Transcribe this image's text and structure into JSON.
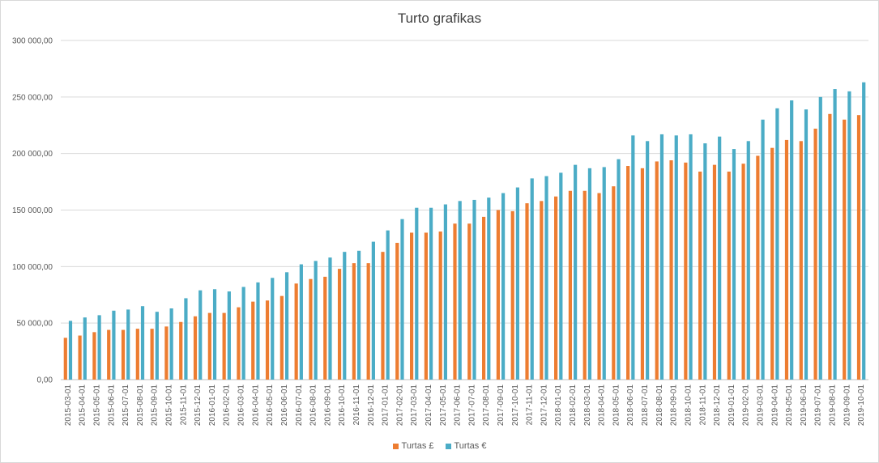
{
  "chart_data": {
    "type": "bar",
    "title": "Turto grafikas",
    "xlabel": "",
    "ylabel": "",
    "ylim": [
      0,
      300000
    ],
    "yticks": [
      0,
      50000,
      100000,
      150000,
      200000,
      250000,
      300000
    ],
    "ytick_labels": [
      "0,00",
      "50 000,00",
      "100 000,00",
      "150 000,00",
      "200 000,00",
      "250 000,00",
      "300 000,00"
    ],
    "grid": true,
    "legend_position": "bottom",
    "categories": [
      "2015-03-01",
      "2015-04-01",
      "2015-05-01",
      "2015-06-01",
      "2015-07-01",
      "2015-08-01",
      "2015-09-01",
      "2015-10-01",
      "2015-11-01",
      "2015-12-01",
      "2016-01-01",
      "2016-02-01",
      "2016-03-01",
      "2016-04-01",
      "2016-05-01",
      "2016-06-01",
      "2016-07-01",
      "2016-08-01",
      "2016-09-01",
      "2016-10-01",
      "2016-11-01",
      "2016-12-01",
      "2017-01-01",
      "2017-02-01",
      "2017-03-01",
      "2017-04-01",
      "2017-05-01",
      "2017-06-01",
      "2017-07-01",
      "2017-08-01",
      "2017-09-01",
      "2017-10-01",
      "2017-11-01",
      "2017-12-01",
      "2018-01-01",
      "2018-02-01",
      "2018-03-01",
      "2018-04-01",
      "2018-05-01",
      "2018-06-01",
      "2018-07-01",
      "2018-08-01",
      "2018-09-01",
      "2018-10-01",
      "2018-11-01",
      "2018-12-01",
      "2019-01-01",
      "2019-02-01",
      "2019-03-01",
      "2019-04-01",
      "2019-05-01",
      "2019-06-01",
      "2019-07-01",
      "2019-08-01",
      "2019-09-01",
      "2019-10-01"
    ],
    "series": [
      {
        "name": "Turtas £",
        "color": "#ed7d31",
        "values": [
          37000,
          39000,
          42000,
          44000,
          44000,
          45000,
          45000,
          47000,
          51000,
          56000,
          59000,
          59000,
          64000,
          69000,
          70000,
          74000,
          85000,
          89000,
          91000,
          98000,
          103000,
          103000,
          113000,
          121000,
          130000,
          130000,
          131000,
          138000,
          138000,
          144000,
          150000,
          149000,
          156000,
          158000,
          162000,
          167000,
          167000,
          165000,
          171000,
          189000,
          187000,
          193000,
          194000,
          192000,
          184000,
          190000,
          184000,
          191000,
          198000,
          205000,
          212000,
          211000,
          222000,
          235000,
          230000,
          234000
        ]
      },
      {
        "name": "Turtas €",
        "color": "#4bacc6",
        "values": [
          52000,
          55000,
          57000,
          61000,
          62000,
          65000,
          60000,
          63000,
          72000,
          79000,
          80000,
          78000,
          82000,
          86000,
          90000,
          95000,
          102000,
          105000,
          108000,
          113000,
          114000,
          122000,
          132000,
          142000,
          152000,
          152000,
          155000,
          158000,
          159000,
          161000,
          165000,
          170000,
          178000,
          180000,
          183000,
          190000,
          187000,
          188000,
          195000,
          216000,
          211000,
          217000,
          216000,
          217000,
          209000,
          215000,
          204000,
          211000,
          230000,
          240000,
          247000,
          239000,
          250000,
          257000,
          255000,
          263000
        ]
      }
    ]
  }
}
